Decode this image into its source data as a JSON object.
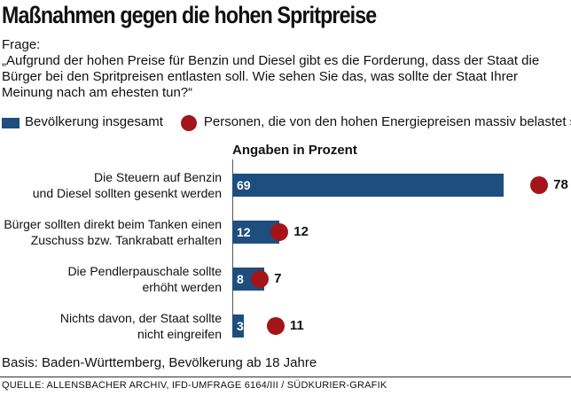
{
  "chart_data": {
    "type": "bar",
    "title": "Maßnahmen gegen die hohen Spritpreise",
    "question_label": "Frage:",
    "question": "„Aufgrund der hohen Preise für Benzin und Diesel gibt es die Forderung, dass der Staat die\nBürger bei den Spritpreisen entlasten soll. Wie sehen Sie das, was sollte der Staat Ihrer\nMeinung nach am ehesten tun?“",
    "unit_label": "Angaben in Prozent",
    "categories": [
      "Die Steuern auf Benzin\nund Diesel sollten gesenkt werden",
      "Bürger sollten direkt beim Tanken einen\nZuschuss bzw. Tankrabatt erhalten",
      "Die Pendlerpauschale sollte\nerhöht werden",
      "Nichts davon, der Staat sollte\nnicht eingreifen"
    ],
    "series": [
      {
        "name": "Bevölkerung insgesamt",
        "color": "#1d4e7e",
        "marker": "bar",
        "values": [
          69,
          12,
          8,
          3
        ]
      },
      {
        "name": "Personen, die von den hohen Energiepreisen massiv belastet sind",
        "color": "#a3151b",
        "marker": "dot",
        "values": [
          78,
          12,
          7,
          11
        ]
      }
    ],
    "xlim": [
      0,
      80
    ],
    "note": "Basis: Baden-Württemberg, Bevölkerung ab 18 Jahre",
    "source": "QUELLE: ALLENSBACHER ARCHIV, IFD-UMFRAGE 6164/III / SÜDKURIER-GRAFIK"
  }
}
